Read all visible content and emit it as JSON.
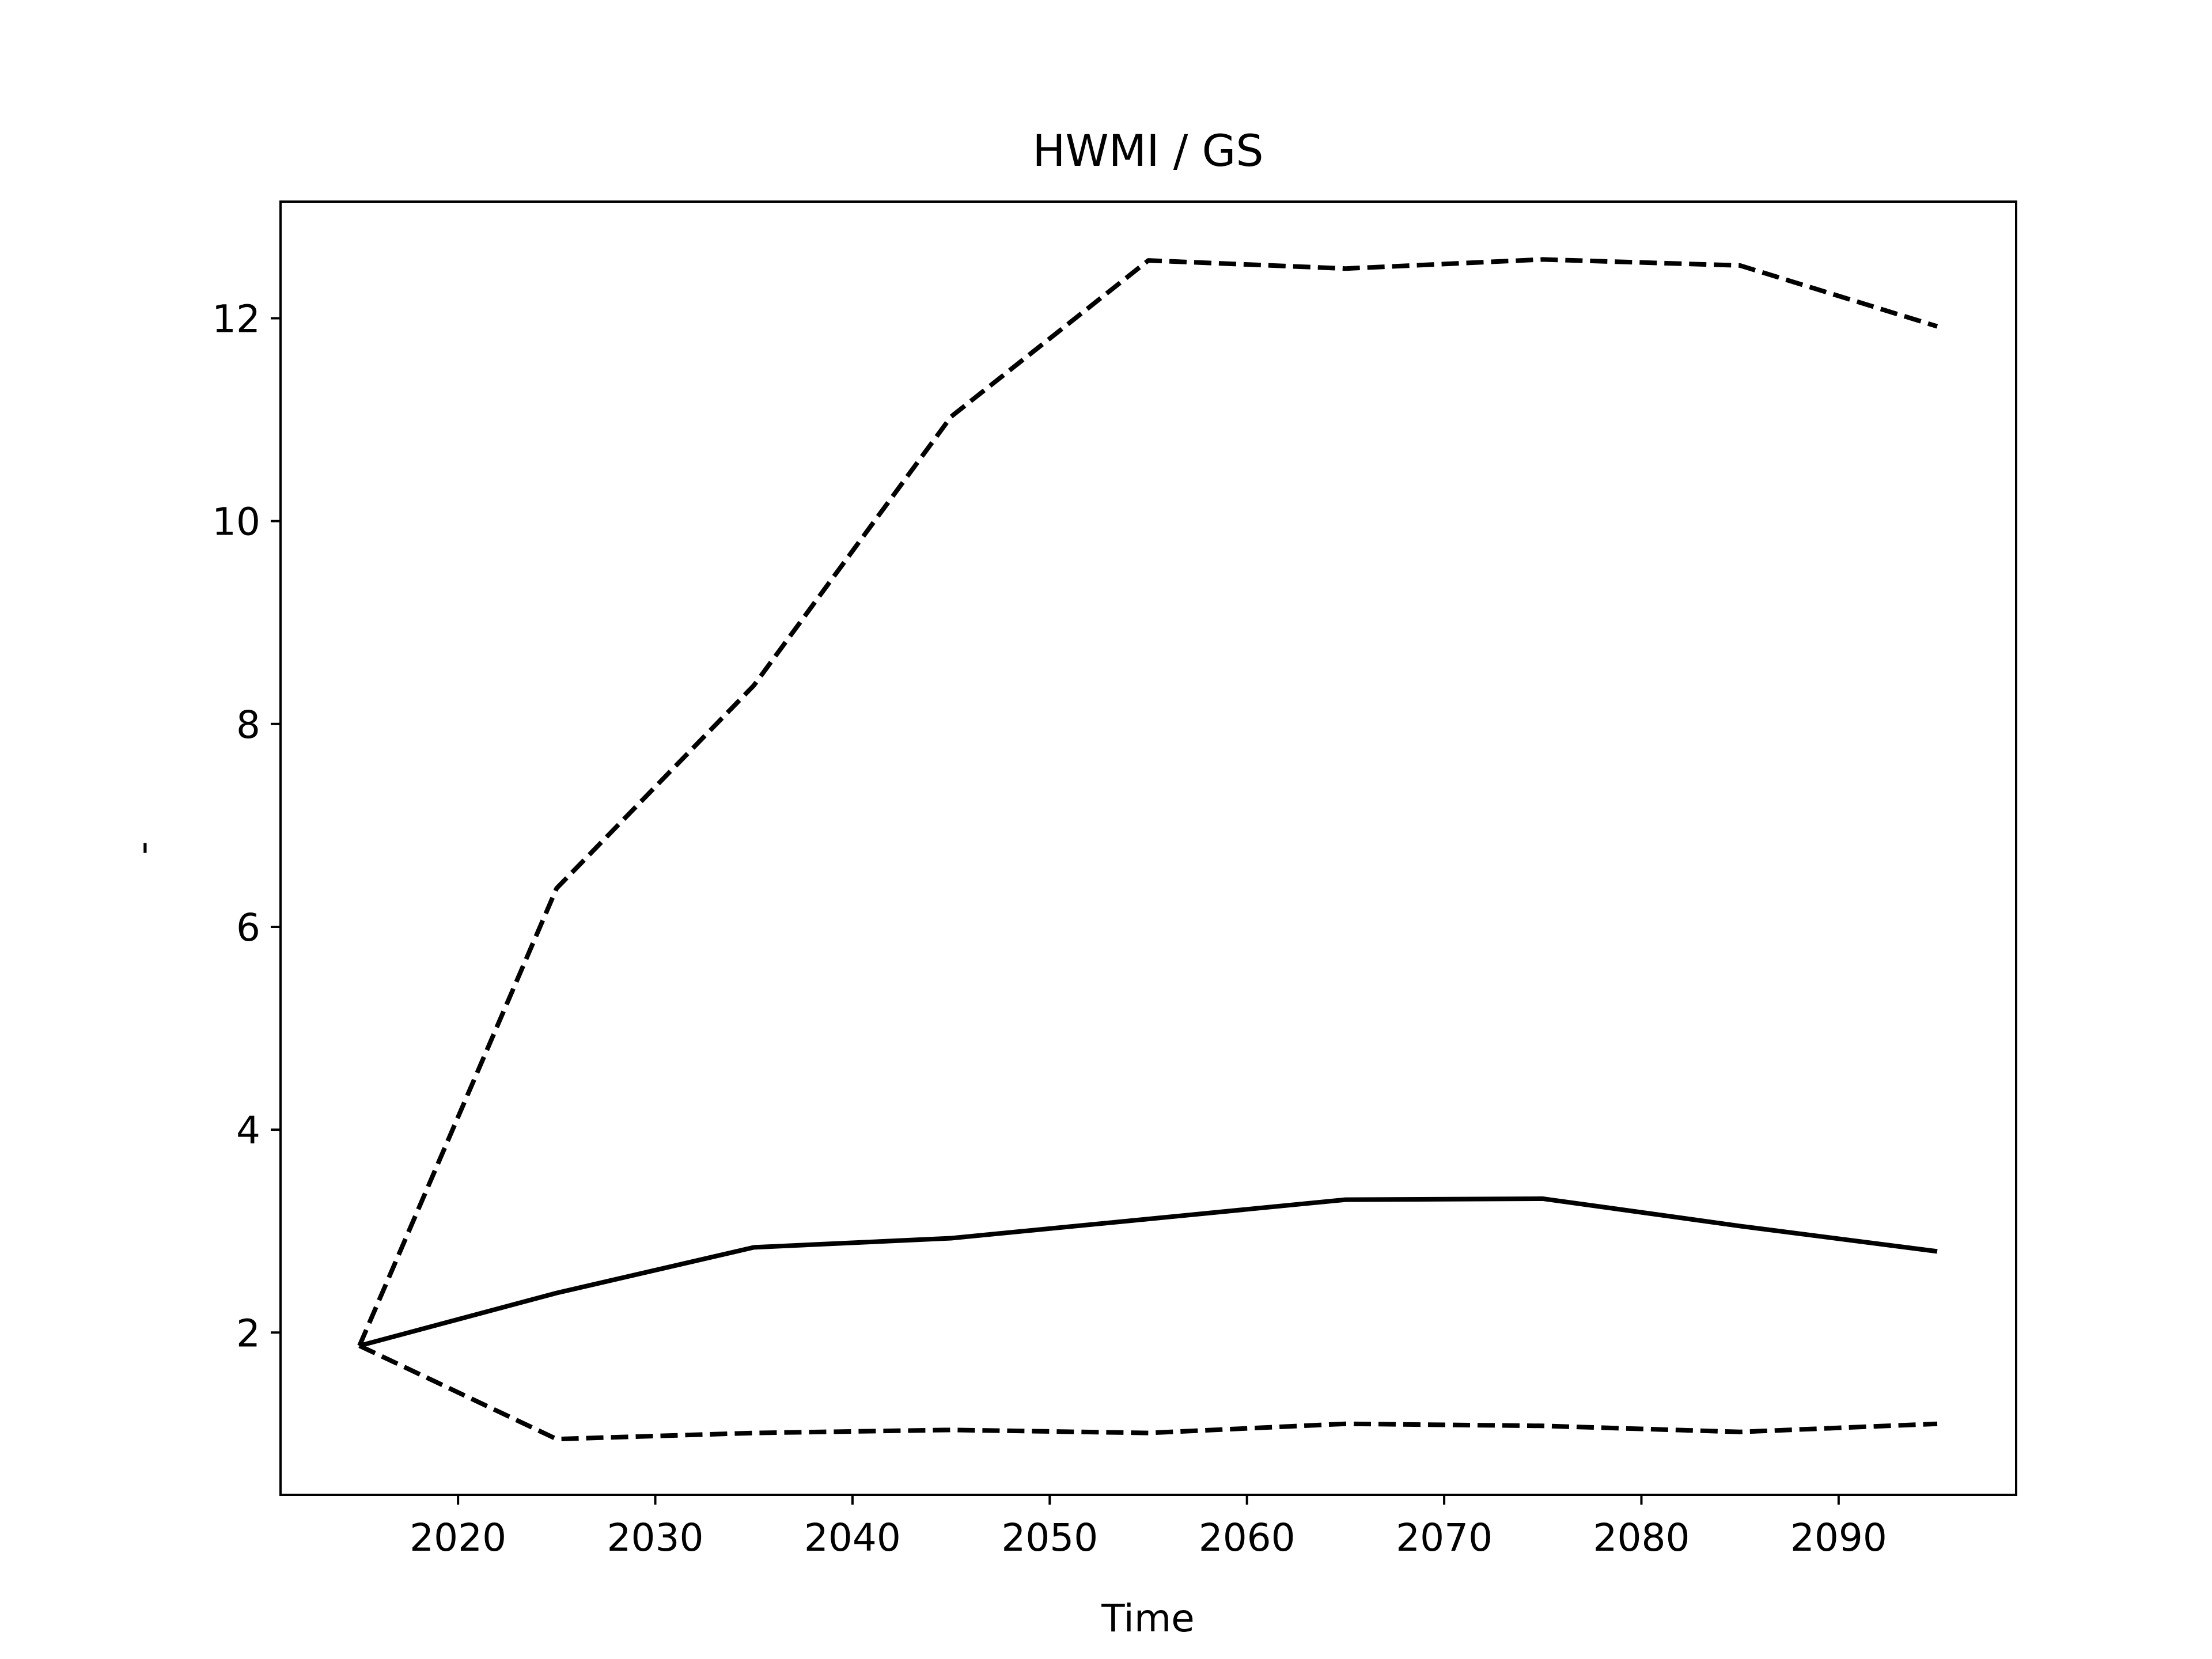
{
  "chart_data": {
    "type": "line",
    "title": "HWMI / GS",
    "xlabel": "Time",
    "ylabel": "-",
    "xlim": [
      2011,
      2099
    ],
    "ylim": [
      0.4,
      13.15
    ],
    "xticks": [
      2020,
      2030,
      2040,
      2050,
      2060,
      2070,
      2080,
      2090
    ],
    "yticks": [
      2,
      4,
      6,
      8,
      10,
      12
    ],
    "grid": false,
    "legend": null,
    "x": [
      2015,
      2025,
      2035,
      2045,
      2055,
      2065,
      2075,
      2085,
      2095
    ],
    "series": [
      {
        "style": "solid",
        "color": "#000000",
        "values": [
          1.87,
          2.39,
          2.84,
          2.93,
          3.12,
          3.31,
          3.32,
          3.05,
          2.8
        ]
      },
      {
        "style": "dashed",
        "color": "#000000",
        "values": [
          1.87,
          6.38,
          8.38,
          11.03,
          12.57,
          12.49,
          12.58,
          12.52,
          11.92
        ]
      },
      {
        "style": "dashed",
        "color": "#000000",
        "values": [
          1.87,
          0.95,
          1.01,
          1.04,
          1.01,
          1.1,
          1.08,
          1.02,
          1.1
        ]
      }
    ]
  }
}
